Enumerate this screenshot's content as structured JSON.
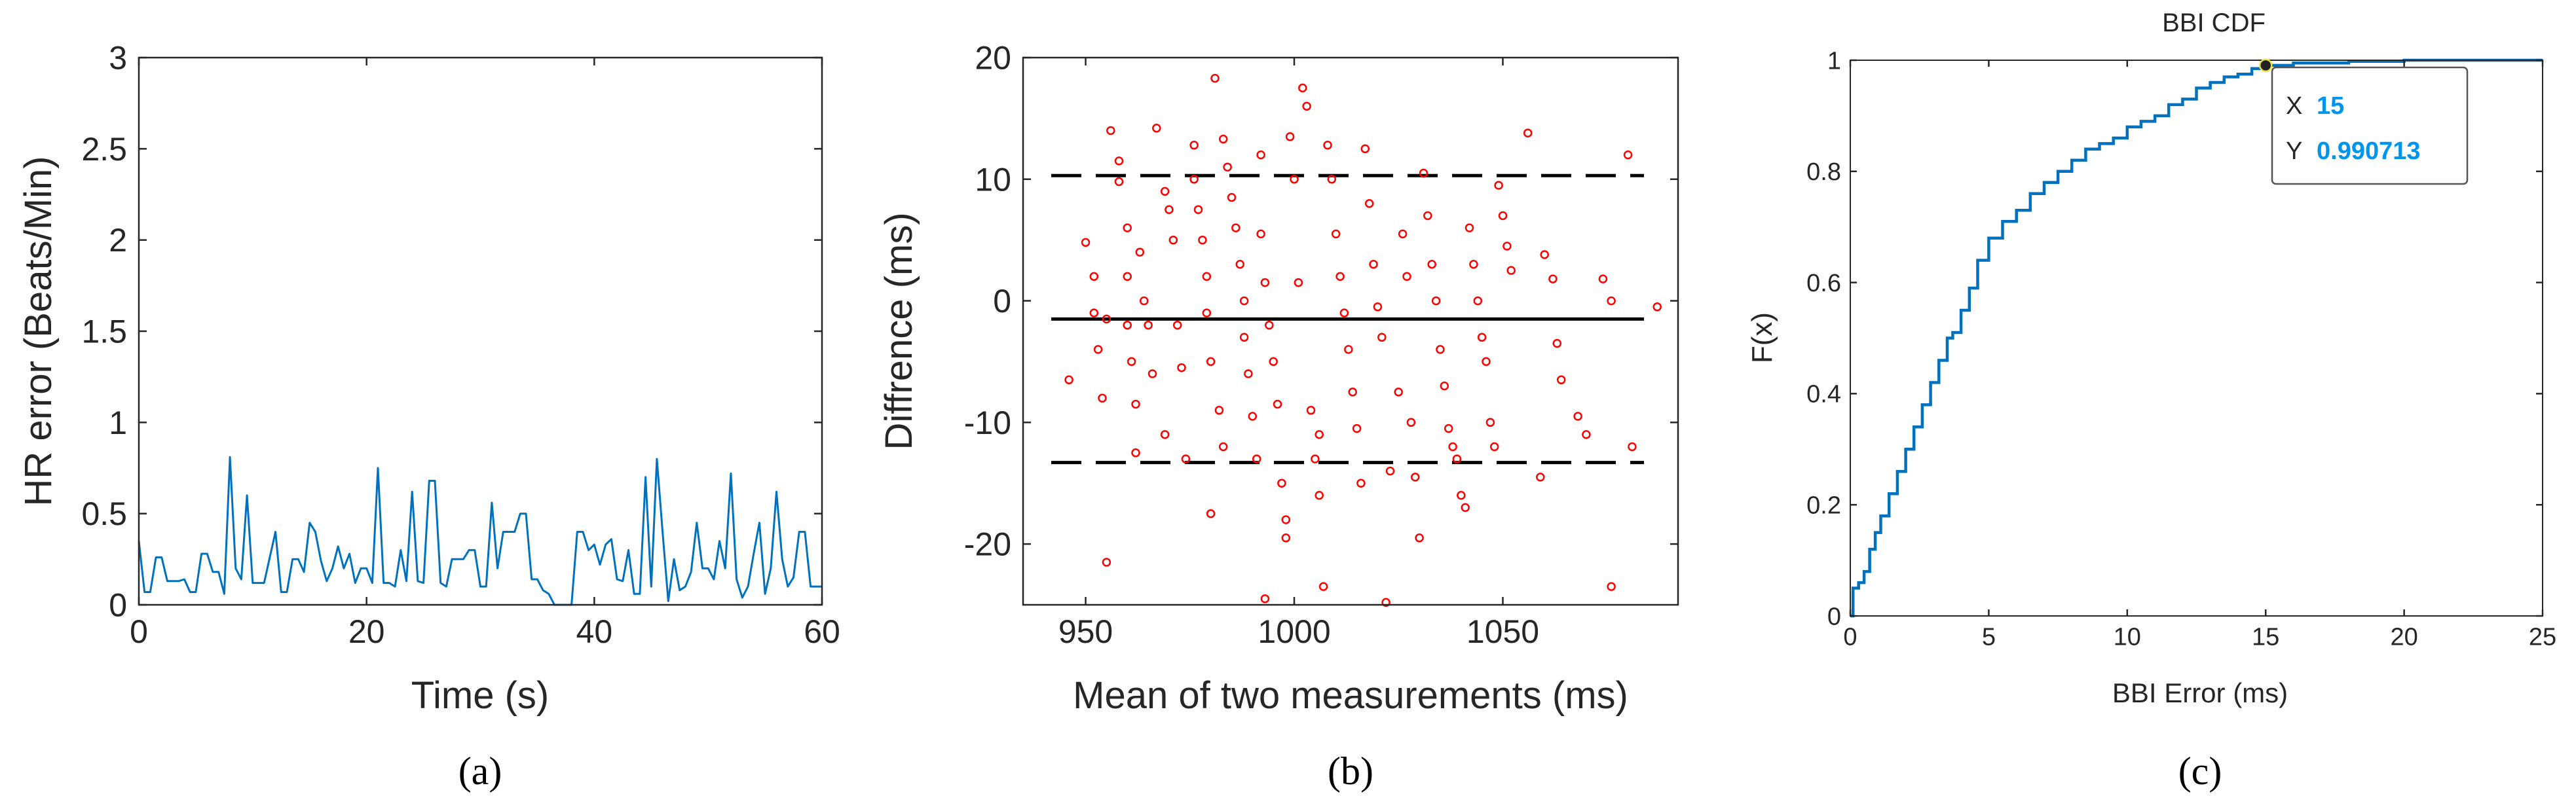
{
  "chart_data": [
    {
      "id": "a",
      "type": "line",
      "caption": "(a)",
      "xlabel": "Time (s)",
      "ylabel": "HR error (Beats/Min)",
      "xlim": [
        0,
        60
      ],
      "ylim": [
        0,
        3
      ],
      "xticks": [
        "0",
        "20",
        "40",
        "60"
      ],
      "yticks": [
        "0",
        "0.5",
        "1",
        "1.5",
        "2",
        "2.5",
        "3"
      ],
      "color": "#0072BD",
      "grid": false,
      "x": [
        0,
        0.5,
        1,
        1.5,
        2,
        2.5,
        3,
        3.5,
        4,
        4.5,
        5,
        5.5,
        6,
        6.5,
        7,
        7.5,
        8,
        8.5,
        9,
        9.5,
        10,
        10.5,
        11,
        11.5,
        12,
        12.5,
        13,
        13.5,
        14,
        14.5,
        15,
        15.5,
        16,
        16.5,
        17,
        17.5,
        18,
        18.5,
        19,
        19.5,
        20,
        20.5,
        21,
        21.5,
        22,
        22.5,
        23,
        23.5,
        24,
        24.5,
        25,
        25.5,
        26,
        26.5,
        27,
        27.5,
        28,
        28.5,
        29,
        29.5,
        30,
        30.5,
        31,
        31.5,
        32,
        32.5,
        33,
        33.5,
        34,
        34.5,
        35,
        35.5,
        36,
        36.5,
        37,
        37.5,
        38,
        38.5,
        39,
        39.5,
        40,
        40.5,
        41,
        41.5,
        42,
        42.5,
        43,
        43.5,
        44,
        44.5,
        45,
        45.5,
        46,
        46.5,
        47,
        47.5,
        48,
        48.5,
        49,
        49.5,
        50,
        50.5,
        51,
        51.5,
        52,
        52.5,
        53,
        53.5,
        54,
        54.5,
        55,
        55.5,
        56,
        56.5,
        57,
        57.5,
        58,
        58.5,
        59,
        59.5,
        60
      ],
      "values": [
        0.35,
        0.07,
        0.07,
        0.26,
        0.26,
        0.13,
        0.13,
        0.13,
        0.14,
        0.07,
        0.07,
        0.28,
        0.28,
        0.18,
        0.18,
        0.06,
        0.81,
        0.2,
        0.14,
        0.6,
        0.12,
        0.12,
        0.12,
        0.26,
        0.4,
        0.07,
        0.07,
        0.25,
        0.25,
        0.18,
        0.45,
        0.4,
        0.24,
        0.13,
        0.2,
        0.32,
        0.2,
        0.28,
        0.12,
        0.2,
        0.2,
        0.12,
        0.75,
        0.12,
        0.12,
        0.1,
        0.3,
        0.13,
        0.62,
        0.13,
        0.12,
        0.68,
        0.68,
        0.12,
        0.1,
        0.25,
        0.25,
        0.25,
        0.3,
        0.3,
        0.1,
        0.1,
        0.56,
        0.2,
        0.4,
        0.4,
        0.4,
        0.5,
        0.5,
        0.14,
        0.14,
        0.08,
        0.06,
        0,
        0,
        0,
        0,
        0.4,
        0.4,
        0.3,
        0.33,
        0.22,
        0.33,
        0.36,
        0.14,
        0.13,
        0.3,
        0.06,
        0.06,
        0.7,
        0.1,
        0.8,
        0.4,
        0.02,
        0.25,
        0.08,
        0.1,
        0.18,
        0.45,
        0.2,
        0.2,
        0.14,
        0.35,
        0.2,
        0.72,
        0.14,
        0.04,
        0.1,
        0.28,
        0.45,
        0.06,
        0.2,
        0.62,
        0.25,
        0.1,
        0.15,
        0.4,
        0.4,
        0.1,
        0.1,
        0.1
      ]
    },
    {
      "id": "b",
      "type": "scatter",
      "caption": "(b)",
      "xlabel": "Mean of two measurements (ms)",
      "ylabel": "Diffrence (ms)",
      "xlim": [
        935,
        1092
      ],
      "ylim": [
        -25,
        20
      ],
      "xticks": [
        "950",
        "1000",
        "1050"
      ],
      "yticks": [
        "-20",
        "-10",
        "0",
        "10",
        "20"
      ],
      "marker_color": "#FF0000",
      "grid": false,
      "lines": [
        {
          "style": "solid",
          "y": -1.5
        },
        {
          "style": "dashed",
          "y": 10.3
        },
        {
          "style": "dashed",
          "y": -13.3
        }
      ],
      "points": [
        [
          946,
          -6.5
        ],
        [
          950,
          4.8
        ],
        [
          952,
          2
        ],
        [
          952,
          -1
        ],
        [
          953,
          -4
        ],
        [
          954,
          -8
        ],
        [
          955,
          -21.5
        ],
        [
          955,
          -1.5
        ],
        [
          956,
          14
        ],
        [
          958,
          11.5
        ],
        [
          958,
          9.8
        ],
        [
          960,
          6
        ],
        [
          960,
          2
        ],
        [
          960,
          -2
        ],
        [
          961,
          -5
        ],
        [
          962,
          -8.5
        ],
        [
          962,
          -12.5
        ],
        [
          963,
          4
        ],
        [
          964,
          0
        ],
        [
          965,
          -2
        ],
        [
          966,
          -6
        ],
        [
          967,
          14.2
        ],
        [
          969,
          9
        ],
        [
          969,
          -11
        ],
        [
          970,
          7.5
        ],
        [
          971,
          5
        ],
        [
          972,
          -2
        ],
        [
          973,
          -5.5
        ],
        [
          974,
          -13
        ],
        [
          976,
          12.8
        ],
        [
          976,
          10
        ],
        [
          977,
          7.5
        ],
        [
          978,
          5
        ],
        [
          979,
          2
        ],
        [
          979,
          -1
        ],
        [
          980,
          -17.5
        ],
        [
          980,
          -5
        ],
        [
          981,
          18.3
        ],
        [
          982,
          -9
        ],
        [
          983,
          -12
        ],
        [
          983,
          13.3
        ],
        [
          984,
          11
        ],
        [
          985,
          8.5
        ],
        [
          986,
          6
        ],
        [
          987,
          3
        ],
        [
          988,
          0
        ],
        [
          988,
          -3
        ],
        [
          989,
          -6
        ],
        [
          990,
          -9.5
        ],
        [
          991,
          -13
        ],
        [
          992,
          12
        ],
        [
          992,
          5.5
        ],
        [
          993,
          -24.5
        ],
        [
          993,
          1.5
        ],
        [
          994,
          -2
        ],
        [
          995,
          -5
        ],
        [
          996,
          -8.5
        ],
        [
          997,
          -15
        ],
        [
          998,
          -19.5
        ],
        [
          998,
          -18
        ],
        [
          999,
          13.5
        ],
        [
          1000,
          10
        ],
        [
          1001,
          1.5
        ],
        [
          1002,
          17.5
        ],
        [
          1003,
          16
        ],
        [
          1004,
          -9
        ],
        [
          1005,
          -13
        ],
        [
          1006,
          -16
        ],
        [
          1006,
          -11
        ],
        [
          1007,
          -23.5
        ],
        [
          1008,
          12.8
        ],
        [
          1009,
          10
        ],
        [
          1010,
          5.5
        ],
        [
          1011,
          2
        ],
        [
          1012,
          -1
        ],
        [
          1013,
          -4
        ],
        [
          1014,
          -7.5
        ],
        [
          1015,
          -10.5
        ],
        [
          1016,
          -15
        ],
        [
          1017,
          12.5
        ],
        [
          1018,
          8
        ],
        [
          1019,
          3
        ],
        [
          1020,
          -0.5
        ],
        [
          1021,
          -3
        ],
        [
          1022,
          -24.8
        ],
        [
          1023,
          -14
        ],
        [
          1025,
          -7.5
        ],
        [
          1026,
          5.5
        ],
        [
          1027,
          2
        ],
        [
          1028,
          -10
        ],
        [
          1029,
          -14.5
        ],
        [
          1030,
          -19.5
        ],
        [
          1031,
          10.5
        ],
        [
          1032,
          7
        ],
        [
          1033,
          3
        ],
        [
          1034,
          0
        ],
        [
          1035,
          -4
        ],
        [
          1036,
          -7
        ],
        [
          1037,
          -10.5
        ],
        [
          1038,
          -12
        ],
        [
          1039,
          -13
        ],
        [
          1040,
          -16
        ],
        [
          1041,
          -17
        ],
        [
          1042,
          6
        ],
        [
          1043,
          3
        ],
        [
          1044,
          0
        ],
        [
          1045,
          -3
        ],
        [
          1046,
          -5
        ],
        [
          1047,
          -10
        ],
        [
          1048,
          -12
        ],
        [
          1049,
          9.5
        ],
        [
          1050,
          7
        ],
        [
          1051,
          4.5
        ],
        [
          1052,
          2.5
        ],
        [
          1056,
          13.8
        ],
        [
          1059,
          -14.5
        ],
        [
          1060,
          3.8
        ],
        [
          1062,
          1.8
        ],
        [
          1063,
          -3.5
        ],
        [
          1064,
          -6.5
        ],
        [
          1068,
          -9.5
        ],
        [
          1070,
          -11
        ],
        [
          1074,
          1.8
        ],
        [
          1076,
          0
        ],
        [
          1076,
          -23.5
        ],
        [
          1080,
          12
        ],
        [
          1081,
          -12
        ],
        [
          1087,
          -0.5
        ]
      ]
    },
    {
      "id": "c",
      "type": "line",
      "caption": "(c)",
      "title": "BBI CDF",
      "xlabel": "BBI Error (ms)",
      "ylabel": "F(x)",
      "xlim": [
        0,
        25
      ],
      "ylim": [
        0,
        1
      ],
      "xticks": [
        "0",
        "5",
        "10",
        "15",
        "20",
        "25"
      ],
      "yticks": [
        "0",
        "0.2",
        "0.4",
        "0.6",
        "0.8",
        "1"
      ],
      "color": "#0072BD",
      "grid": false,
      "x": [
        0,
        0.1,
        0.3,
        0.5,
        0.7,
        0.9,
        1.1,
        1.4,
        1.7,
        2.0,
        2.3,
        2.6,
        2.9,
        3.2,
        3.5,
        3.7,
        4.0,
        4.3,
        4.6,
        5.0,
        5.5,
        6.0,
        6.5,
        7.0,
        7.5,
        8.0,
        8.5,
        9.0,
        9.5,
        10.0,
        10.5,
        11.0,
        11.5,
        12.0,
        12.5,
        13.0,
        13.5,
        14.0,
        14.5,
        15.0,
        16.0,
        18.0,
        20.0,
        25.0
      ],
      "values": [
        0.0,
        0.05,
        0.06,
        0.08,
        0.12,
        0.15,
        0.18,
        0.22,
        0.26,
        0.3,
        0.34,
        0.38,
        0.42,
        0.46,
        0.5,
        0.51,
        0.55,
        0.59,
        0.64,
        0.68,
        0.71,
        0.73,
        0.76,
        0.78,
        0.8,
        0.82,
        0.84,
        0.85,
        0.86,
        0.88,
        0.89,
        0.9,
        0.92,
        0.93,
        0.95,
        0.96,
        0.97,
        0.975,
        0.985,
        0.99071,
        0.995,
        0.998,
        1.0,
        1.0
      ],
      "datatip": {
        "x_label": "X",
        "x_value": "15",
        "y_label": "Y",
        "y_value": "0.990713",
        "x": 15,
        "y": 0.990713
      }
    }
  ]
}
